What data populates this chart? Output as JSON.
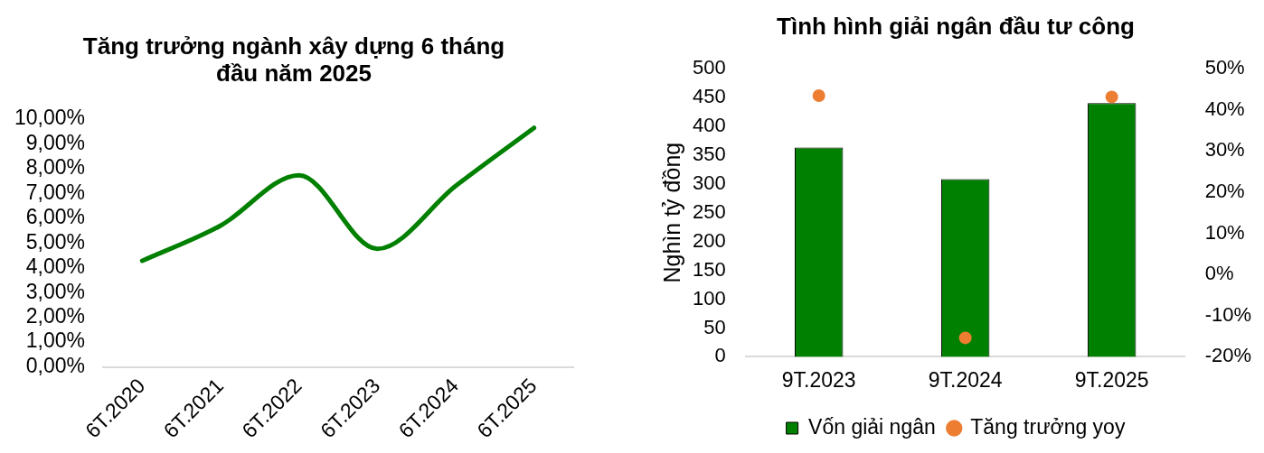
{
  "chart_data": [
    {
      "type": "line",
      "title": "Tăng trưởng ngành xây dựng 6 tháng đầu năm 2025",
      "categories": [
        "6T.2020",
        "6T.2021",
        "6T.2022",
        "6T.2023",
        "6T.2024",
        "6T.2025"
      ],
      "values": [
        4.28,
        5.7,
        7.73,
        4.76,
        7.3,
        9.64
      ],
      "color": "#008000",
      "marker": "none",
      "ylim": [
        0,
        10
      ],
      "yticks": [
        {
          "value": 0,
          "label": "0,00%"
        },
        {
          "value": 1,
          "label": "1,00%"
        },
        {
          "value": 2,
          "label": "2,00%"
        },
        {
          "value": 3,
          "label": "3,00%"
        },
        {
          "value": 4,
          "label": "4,00%"
        },
        {
          "value": 5,
          "label": "5,00%"
        },
        {
          "value": 6,
          "label": "6,00%"
        },
        {
          "value": 7,
          "label": "7,00%"
        },
        {
          "value": 8,
          "label": "8,00%"
        },
        {
          "value": 9,
          "label": "9,00%"
        },
        {
          "value": 10,
          "label": "10,00%"
        }
      ]
    },
    {
      "type": "bar",
      "title": "Tình hình giải ngân đầu tư công",
      "ylabel": "Nghìn tỷ đồng",
      "categories": [
        "9T.2023",
        "9T.2024",
        "9T.2025"
      ],
      "series": [
        {
          "name": "Vốn giải ngân",
          "type": "bar",
          "color": "#008000",
          "values": [
            363,
            308,
            440
          ]
        },
        {
          "name": "Tăng trưởng yoy",
          "type": "scatter",
          "axis": "y2",
          "color": "#ed7d31",
          "x": [
            "9T.2023",
            "9T.2024",
            "9T.2025"
          ],
          "values": [
            43.4,
            -15.4,
            43.1
          ]
        }
      ],
      "marker": "circle",
      "ylim": [
        0,
        500
      ],
      "yticks": [
        0,
        50,
        100,
        150,
        200,
        250,
        300,
        350,
        400,
        450,
        500
      ],
      "y2lim": [
        -20,
        50
      ],
      "y2ticks": [
        {
          "value": -20,
          "label": "-20%"
        },
        {
          "value": -10,
          "label": "-10%"
        },
        {
          "value": 0,
          "label": "0%"
        },
        {
          "value": 10,
          "label": "10%"
        },
        {
          "value": 20,
          "label": "20%"
        },
        {
          "value": 30,
          "label": "30%"
        },
        {
          "value": 40,
          "label": "40%"
        },
        {
          "value": 50,
          "label": "50%"
        }
      ],
      "legend": "bottom"
    }
  ]
}
